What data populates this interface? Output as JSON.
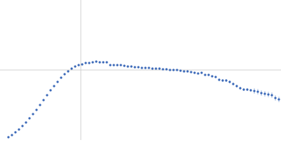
{
  "chart_data": {
    "type": "scatter",
    "x": [
      -1.03,
      -0.98,
      -0.93,
      -0.88,
      -0.83,
      -0.78,
      -0.73,
      -0.68,
      -0.63,
      -0.58,
      -0.53,
      -0.48,
      -0.43,
      -0.38,
      -0.33,
      -0.28,
      -0.23,
      -0.18,
      -0.13,
      -0.08,
      -0.03,
      0.02,
      0.07,
      0.12,
      0.17,
      0.22,
      0.27,
      0.32,
      0.37,
      0.42,
      0.47,
      0.52,
      0.57,
      0.62,
      0.67,
      0.72,
      0.77,
      0.82,
      0.87,
      0.92,
      0.97,
      1.02,
      1.07,
      1.12,
      1.17,
      1.22,
      1.27,
      1.32,
      1.37,
      1.42,
      1.47,
      1.52,
      1.57,
      1.62,
      1.67,
      1.72,
      1.77,
      1.82,
      1.87,
      1.92,
      1.97,
      2.02,
      2.07,
      2.12,
      2.17,
      2.22,
      2.27,
      2.32,
      2.37,
      2.42,
      2.47,
      2.52,
      2.57,
      2.62,
      2.67,
      2.72,
      2.77,
      2.82
    ],
    "values": [
      -0.96,
      -0.93,
      -0.89,
      -0.85,
      -0.8,
      -0.75,
      -0.69,
      -0.63,
      -0.57,
      -0.5,
      -0.43,
      -0.36,
      -0.29,
      -0.23,
      -0.17,
      -0.11,
      -0.06,
      -0.02,
      0.02,
      0.05,
      0.07,
      0.08,
      0.1,
      0.1,
      0.11,
      0.12,
      0.11,
      0.11,
      0.11,
      0.07,
      0.07,
      0.07,
      0.07,
      0.06,
      0.05,
      0.05,
      0.04,
      0.04,
      0.03,
      0.03,
      0.03,
      0.02,
      0.02,
      0.02,
      0.01,
      0.01,
      0.0,
      0.0,
      0.0,
      -0.01,
      -0.02,
      -0.02,
      -0.03,
      -0.04,
      -0.05,
      -0.04,
      -0.07,
      -0.07,
      -0.09,
      -0.1,
      -0.14,
      -0.15,
      -0.15,
      -0.17,
      -0.2,
      -0.23,
      -0.26,
      -0.28,
      -0.28,
      -0.29,
      -0.3,
      -0.31,
      -0.33,
      -0.34,
      -0.35,
      -0.36,
      -0.4,
      -0.42
    ],
    "errors": [
      0.005,
      0.005,
      0.005,
      0.005,
      0.005,
      0.005,
      0.005,
      0.005,
      0.005,
      0.005,
      0.005,
      0.005,
      0.005,
      0.005,
      0.005,
      0.005,
      0.005,
      0.005,
      0.005,
      0.005,
      0.005,
      0.005,
      0.005,
      0.005,
      0.005,
      0.005,
      0.005,
      0.005,
      0.005,
      0.005,
      0.005,
      0.005,
      0.005,
      0.005,
      0.005,
      0.005,
      0.005,
      0.005,
      0.005,
      0.005,
      0.01,
      0.01,
      0.01,
      0.01,
      0.01,
      0.01,
      0.01,
      0.01,
      0.01,
      0.01,
      0.01,
      0.01,
      0.01,
      0.01,
      0.01,
      0.01,
      0.01,
      0.01,
      0.01,
      0.01,
      0.02,
      0.02,
      0.02,
      0.02,
      0.02,
      0.02,
      0.02,
      0.02,
      0.02,
      0.02,
      0.04,
      0.04,
      0.04,
      0.04,
      0.04,
      0.04,
      0.04,
      0.04
    ],
    "color": "#3a68b8",
    "error_color": "#a9bfe3",
    "xlim": [
      -1.15,
      2.85
    ],
    "ylim": [
      -1,
      1
    ],
    "vline": 0,
    "hline": 0
  }
}
